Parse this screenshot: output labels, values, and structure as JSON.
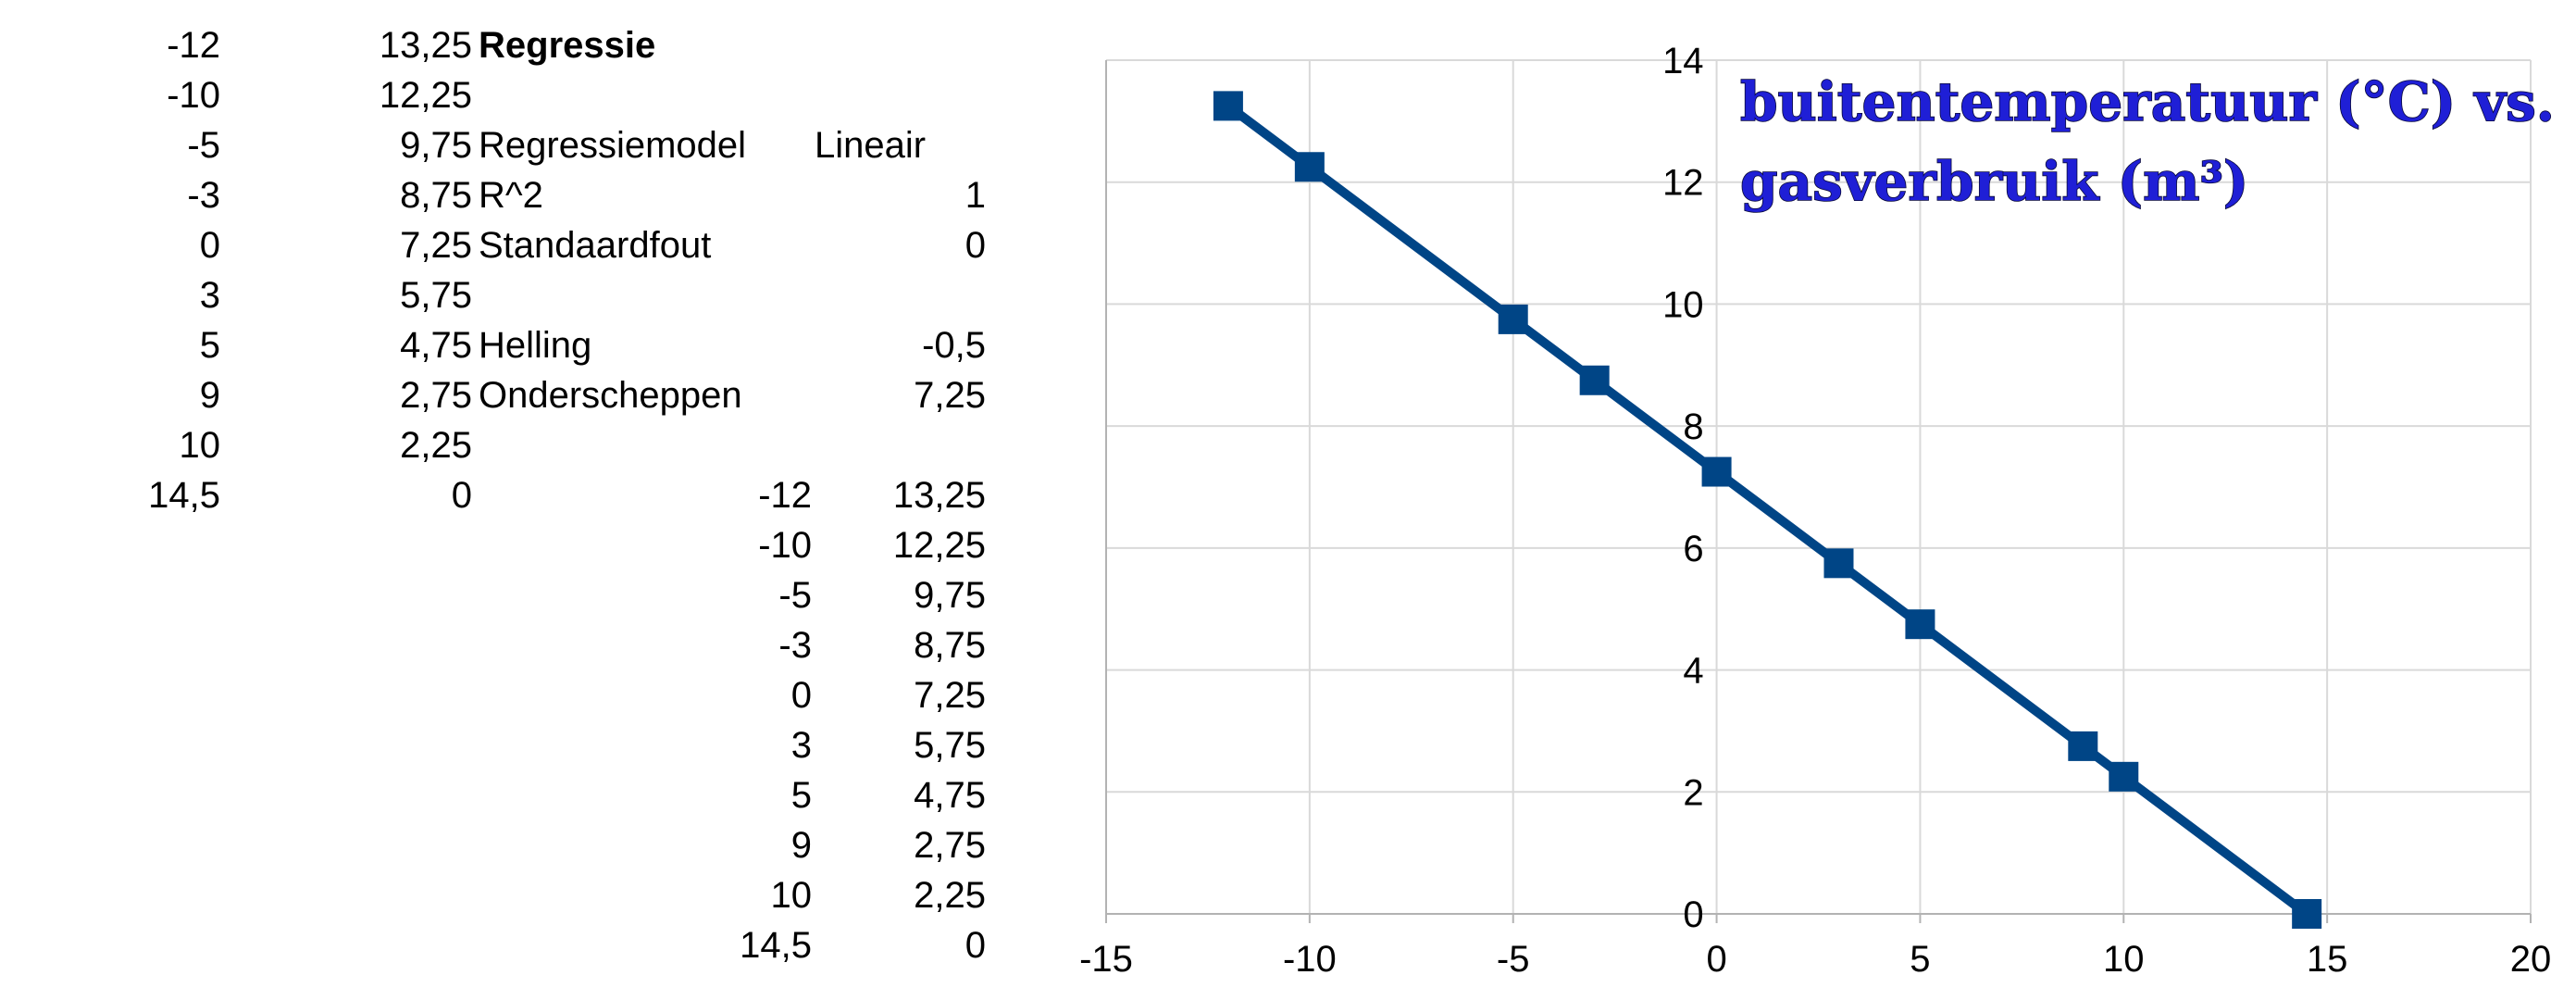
{
  "table": {
    "col_a": [
      "-12",
      "-10",
      "-5",
      "-3",
      "0",
      "3",
      "5",
      "9",
      "10",
      "14,5"
    ],
    "col_b": [
      "13,25",
      "12,25",
      "9,75",
      "8,75",
      "7,25",
      "5,75",
      "4,75",
      "2,75",
      "2,25",
      "0"
    ],
    "regression": {
      "heading": "Regressie",
      "model_label": "Regressiemodel",
      "model_value": "Lineair",
      "r2_label": "R^2",
      "r2_value": "1",
      "se_label": "Standaardfout",
      "se_value": "0",
      "slope_label": "Helling",
      "slope_value": "-0,5",
      "intercept_label": "Onderscheppen",
      "intercept_value": "7,25"
    },
    "col_d": [
      "-12",
      "-10",
      "-5",
      "-3",
      "0",
      "3",
      "5",
      "9",
      "10",
      "14,5"
    ],
    "col_e": [
      "13,25",
      "12,25",
      "9,75",
      "8,75",
      "7,25",
      "5,75",
      "4,75",
      "2,75",
      "2,25",
      "0"
    ]
  },
  "chart_data": {
    "type": "scatter",
    "title_lines": [
      "buitentemperatuur (°C) vs.",
      "gasverbruik (m³)"
    ],
    "xlabel": "",
    "ylabel": "",
    "xlim": [
      -15,
      20
    ],
    "ylim": [
      0,
      14
    ],
    "x_ticks": [
      "-15",
      "-10",
      "-5",
      "0",
      "5",
      "10",
      "15",
      "20"
    ],
    "y_ticks": [
      "0",
      "2",
      "4",
      "6",
      "8",
      "10",
      "12",
      "14"
    ],
    "grid": true,
    "series": [
      {
        "x": [
          -12,
          -10,
          -5,
          -3,
          0,
          3,
          5,
          9,
          10,
          14.5
        ],
        "y": [
          13.25,
          12.25,
          9.75,
          8.75,
          7.25,
          5.75,
          4.75,
          2.75,
          2.25,
          0
        ],
        "color": "#004586",
        "marker": "square",
        "line": true
      }
    ]
  }
}
